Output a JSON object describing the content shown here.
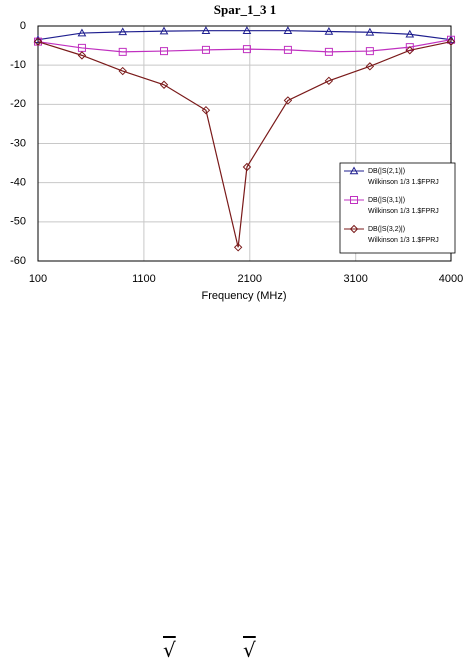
{
  "chart_data": {
    "type": "line",
    "title": "Spar_1_3 1",
    "x_label": "Frequency (MHz)",
    "xlim": [
      100,
      4000
    ],
    "xticks": [
      100,
      1100,
      2100,
      3100,
      4000
    ],
    "ylim": [
      -60,
      0
    ],
    "yticks": [
      0,
      -10,
      -20,
      -30,
      -40,
      -50,
      -60
    ],
    "grid": true,
    "legend": "lower right",
    "series": [
      {
        "name": "DB(|S(2,1)|)",
        "source": "Wilkinson 1/3 1.$FPRJ",
        "color": "#1f1f8f",
        "marker": "triangle",
        "x": [
          100,
          515,
          900,
          1290,
          1686,
          2073,
          2460,
          2847,
          3234,
          3611,
          4000
        ],
        "values": [
          -3.5,
          -1.8,
          -1.5,
          -1.3,
          -1.2,
          -1.2,
          -1.2,
          -1.4,
          -1.6,
          -2.1,
          -3.5
        ]
      },
      {
        "name": "DB(|S(3,1)|)",
        "source": "Wilkinson 1/3 1.$FPRJ",
        "color": "#c030c0",
        "marker": "square",
        "x": [
          100,
          515,
          900,
          1290,
          1686,
          2073,
          2460,
          2847,
          3234,
          3611,
          4000
        ],
        "values": [
          -4,
          -5.6,
          -6.6,
          -6.4,
          -6.1,
          -5.9,
          -6.1,
          -6.6,
          -6.4,
          -5.4,
          -3.5
        ]
      },
      {
        "name": "DB(|S(3,2)|)",
        "source": "Wilkinson 1/3 1.$FPRJ",
        "color": "#7a1a1a",
        "marker": "diamond",
        "x": [
          100,
          515,
          900,
          1290,
          1686,
          1990,
          2073,
          2460,
          2847,
          3234,
          3611,
          4000
        ],
        "values": [
          -4,
          -7.5,
          -11.5,
          -15,
          -21.5,
          -56.5,
          -36,
          -19,
          -14,
          -10.3,
          -6.2,
          -4
        ]
      }
    ]
  },
  "footer_symbols": [
    "√",
    "√"
  ]
}
